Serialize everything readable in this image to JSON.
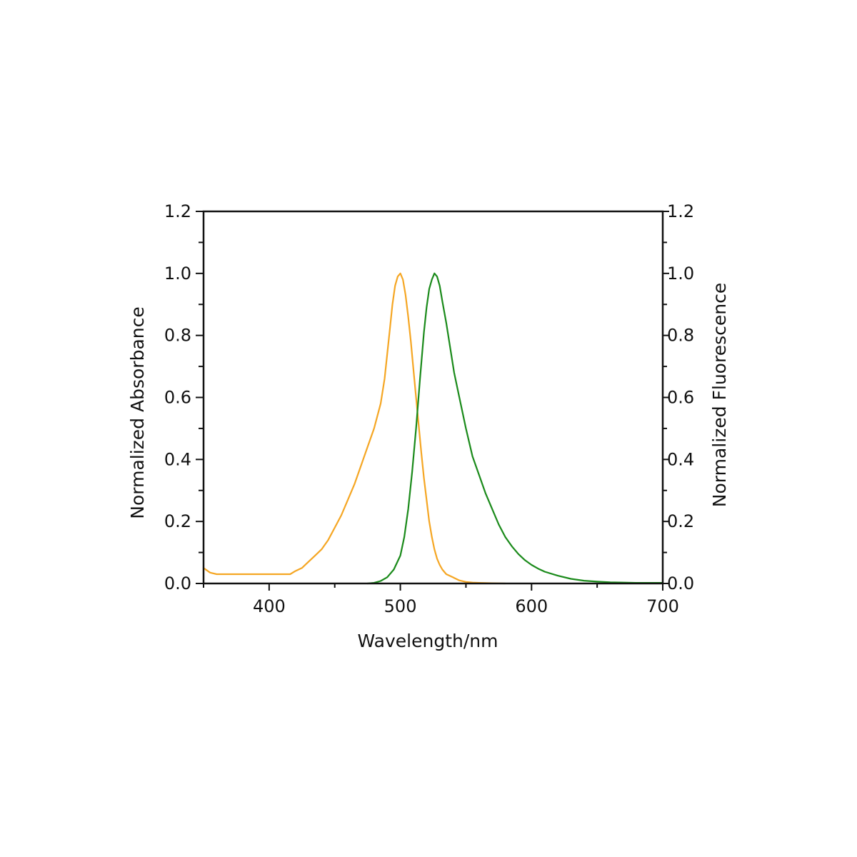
{
  "chart_data": {
    "type": "line",
    "title": "",
    "xlabel": "Wavelength/nm",
    "ylabel_left": "Normalized Absorbance",
    "ylabel_right": "Normalized Fluorescence",
    "xlim": [
      350,
      700
    ],
    "ylim_left": [
      0,
      1.2
    ],
    "ylim_right": [
      0,
      1.2
    ],
    "x_ticks": [
      "400",
      "500",
      "600",
      "700"
    ],
    "x_tick_values": [
      400,
      500,
      600,
      700
    ],
    "y_ticks_left": [
      "0.0",
      "0.2",
      "0.4",
      "0.6",
      "0.8",
      "1.0",
      "1.2"
    ],
    "y_ticks_right": [
      "0.0",
      "0.2",
      "0.4",
      "0.6",
      "0.8",
      "1.0",
      "1.2"
    ],
    "y_tick_values": [
      0,
      0.2,
      0.4,
      0.6,
      0.8,
      1.0,
      1.2
    ],
    "grid": false,
    "series": [
      {
        "axis": "left",
        "color": "#f5a623",
        "x": [
          350,
          355,
          360,
          370,
          380,
          390,
          400,
          410,
          416,
          420,
          425,
          430,
          435,
          440,
          445,
          450,
          455,
          460,
          465,
          470,
          475,
          480,
          485,
          488,
          490,
          492,
          494,
          496,
          498,
          500,
          502,
          504,
          506,
          508,
          510,
          512,
          514,
          516,
          518,
          520,
          522,
          524,
          526,
          528,
          530,
          532,
          535,
          540,
          545,
          550,
          555,
          560,
          570,
          580
        ],
        "y": [
          0.05,
          0.035,
          0.03,
          0.03,
          0.03,
          0.03,
          0.03,
          0.03,
          0.03,
          0.04,
          0.05,
          0.07,
          0.09,
          0.11,
          0.14,
          0.18,
          0.22,
          0.27,
          0.32,
          0.38,
          0.44,
          0.5,
          0.58,
          0.66,
          0.74,
          0.82,
          0.9,
          0.96,
          0.99,
          1.0,
          0.98,
          0.93,
          0.86,
          0.78,
          0.69,
          0.6,
          0.51,
          0.42,
          0.34,
          0.27,
          0.2,
          0.15,
          0.11,
          0.08,
          0.06,
          0.045,
          0.03,
          0.02,
          0.01,
          0.005,
          0.003,
          0.002,
          0.001,
          0.0
        ]
      },
      {
        "axis": "right",
        "color": "#1a8a1a",
        "x": [
          475,
          480,
          485,
          490,
          495,
          500,
          503,
          506,
          509,
          512,
          515,
          518,
          520,
          522,
          524,
          526,
          528,
          530,
          532,
          535,
          538,
          541,
          545,
          550,
          555,
          560,
          565,
          570,
          575,
          580,
          585,
          590,
          595,
          600,
          605,
          610,
          620,
          630,
          640,
          650,
          660,
          670,
          680,
          690,
          700
        ],
        "y": [
          0.0,
          0.002,
          0.008,
          0.02,
          0.045,
          0.09,
          0.15,
          0.24,
          0.36,
          0.5,
          0.66,
          0.81,
          0.89,
          0.95,
          0.98,
          1.0,
          0.99,
          0.96,
          0.91,
          0.84,
          0.76,
          0.68,
          0.6,
          0.5,
          0.41,
          0.35,
          0.29,
          0.24,
          0.19,
          0.15,
          0.12,
          0.095,
          0.075,
          0.06,
          0.048,
          0.038,
          0.025,
          0.015,
          0.009,
          0.006,
          0.004,
          0.003,
          0.002,
          0.002,
          0.002
        ]
      }
    ]
  }
}
